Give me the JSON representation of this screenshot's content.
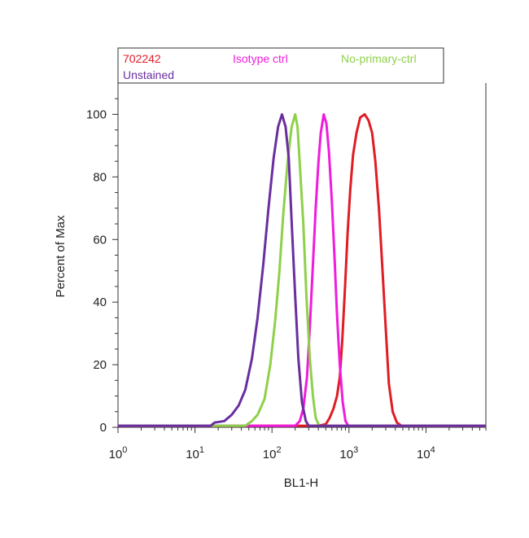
{
  "chart_data": {
    "type": "line",
    "xlabel": "BL1-H",
    "ylabel": "Percent of Max",
    "x_scale": "log",
    "xlim": [
      1,
      60000
    ],
    "ylim": [
      0,
      110
    ],
    "x_ticks": [
      {
        "base": "10",
        "exp": "0",
        "value": 1
      },
      {
        "base": "10",
        "exp": "1",
        "value": 10
      },
      {
        "base": "10",
        "exp": "2",
        "value": 100
      },
      {
        "base": "10",
        "exp": "3",
        "value": 1000
      },
      {
        "base": "10",
        "exp": "4",
        "value": 10000
      }
    ],
    "y_ticks": [
      "0",
      "20",
      "40",
      "60",
      "80",
      "100"
    ],
    "grid": false,
    "legend_position": "top",
    "series": [
      {
        "name": "702242",
        "color": "#e01c24",
        "points": [
          [
            1,
            0.5
          ],
          [
            400,
            0.5
          ],
          [
            500,
            1
          ],
          [
            560,
            3
          ],
          [
            630,
            6
          ],
          [
            700,
            10
          ],
          [
            760,
            16
          ],
          [
            820,
            28
          ],
          [
            890,
            45
          ],
          [
            960,
            62
          ],
          [
            1040,
            76
          ],
          [
            1130,
            87
          ],
          [
            1250,
            94
          ],
          [
            1400,
            99
          ],
          [
            1600,
            100
          ],
          [
            1800,
            98
          ],
          [
            2000,
            94
          ],
          [
            2200,
            85
          ],
          [
            2450,
            70
          ],
          [
            2700,
            52
          ],
          [
            3000,
            32
          ],
          [
            3300,
            14
          ],
          [
            3700,
            5
          ],
          [
            4200,
            1.5
          ],
          [
            4800,
            0.5
          ],
          [
            60000,
            0.5
          ]
        ]
      },
      {
        "name": "Isotype ctrl",
        "color": "#f01cdc",
        "points": [
          [
            1,
            0.5
          ],
          [
            200,
            0.5
          ],
          [
            230,
            2
          ],
          [
            255,
            6
          ],
          [
            285,
            16
          ],
          [
            310,
            32
          ],
          [
            340,
            52
          ],
          [
            370,
            70
          ],
          [
            400,
            84
          ],
          [
            430,
            94
          ],
          [
            470,
            100
          ],
          [
            510,
            97
          ],
          [
            550,
            88
          ],
          [
            600,
            72
          ],
          [
            650,
            54
          ],
          [
            700,
            36
          ],
          [
            760,
            20
          ],
          [
            830,
            8
          ],
          [
            900,
            2
          ],
          [
            980,
            0.5
          ],
          [
            60000,
            0.5
          ]
        ]
      },
      {
        "name": "No-primary-ctrl",
        "color": "#8fd04a",
        "points": [
          [
            1,
            0.5
          ],
          [
            45,
            0.5
          ],
          [
            55,
            2
          ],
          [
            65,
            4
          ],
          [
            80,
            9
          ],
          [
            95,
            20
          ],
          [
            110,
            34
          ],
          [
            125,
            50
          ],
          [
            140,
            68
          ],
          [
            160,
            85
          ],
          [
            180,
            96
          ],
          [
            200,
            100
          ],
          [
            215,
            96
          ],
          [
            230,
            84
          ],
          [
            255,
            65
          ],
          [
            280,
            42
          ],
          [
            310,
            22
          ],
          [
            340,
            10
          ],
          [
            370,
            3
          ],
          [
            410,
            0.5
          ],
          [
            60000,
            0.5
          ]
        ]
      },
      {
        "name": "Unstained",
        "color": "#6a2ea0",
        "points": [
          [
            1,
            0.5
          ],
          [
            16,
            0.5
          ],
          [
            18,
            1.5
          ],
          [
            24,
            2
          ],
          [
            30,
            4
          ],
          [
            37,
            7
          ],
          [
            45,
            12
          ],
          [
            55,
            22
          ],
          [
            65,
            35
          ],
          [
            77,
            52
          ],
          [
            90,
            70
          ],
          [
            105,
            86
          ],
          [
            120,
            96
          ],
          [
            135,
            100
          ],
          [
            150,
            96
          ],
          [
            165,
            86
          ],
          [
            180,
            66
          ],
          [
            200,
            42
          ],
          [
            220,
            22
          ],
          [
            245,
            8
          ],
          [
            275,
            2
          ],
          [
            300,
            0.5
          ],
          [
            60000,
            0.5
          ]
        ]
      }
    ]
  }
}
